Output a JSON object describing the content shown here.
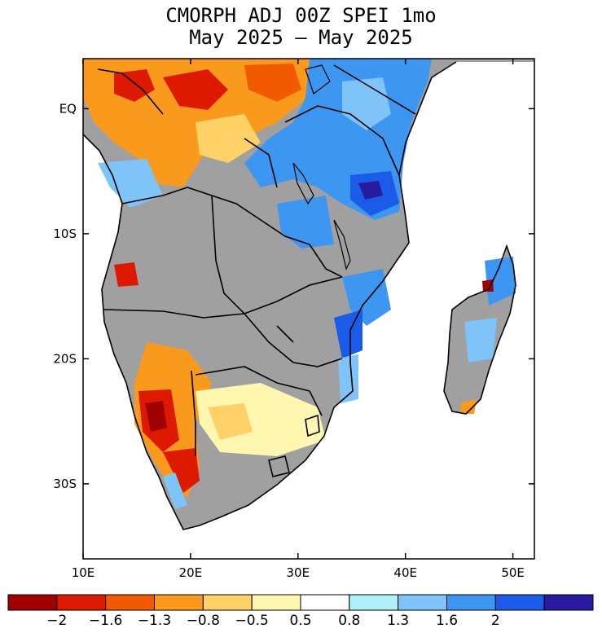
{
  "title": {
    "line1": "CMORPH ADJ 00Z SPEI 1mo",
    "line2": "May 2025 – May 2025"
  },
  "map": {
    "lon_range": [
      10,
      52
    ],
    "lat_range": [
      -36,
      4
    ],
    "lat_ticks": [
      {
        "label": "EQ",
        "lat": 0
      },
      {
        "label": "10S",
        "lat": -10
      },
      {
        "label": "20S",
        "lat": -20
      },
      {
        "label": "30S",
        "lat": -30
      }
    ],
    "lon_ticks": [
      {
        "label": "10E",
        "lon": 10
      },
      {
        "label": "20E",
        "lon": 20
      },
      {
        "label": "30E",
        "lon": 30
      },
      {
        "label": "40E",
        "lon": 40
      },
      {
        "label": "50E",
        "lon": 50
      }
    ],
    "colors": {
      "no_data": "#a0a0a0",
      "ocean": "#ffffff",
      "border": "#000000"
    }
  },
  "colorbar": {
    "colors": [
      "#a00000",
      "#dd1a00",
      "#f25a00",
      "#f99a1c",
      "#ffd166",
      "#fff6b0",
      "#ffffff",
      "#b0f0f8",
      "#7fc4f8",
      "#3d96f0",
      "#1a5ce8",
      "#2a1aa0"
    ],
    "labels": [
      "−2",
      "−1.6",
      "−1.3",
      "−0.8",
      "−0.5",
      "0.5",
      "0.8",
      "1.3",
      "1.6",
      "2"
    ]
  }
}
